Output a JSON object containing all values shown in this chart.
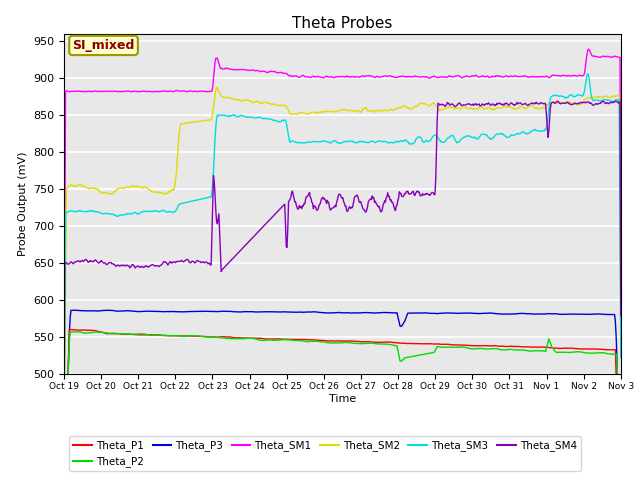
{
  "title": "Theta Probes",
  "xlabel": "Time",
  "ylabel": "Probe Output (mV)",
  "ylim": [
    500,
    960
  ],
  "yticks": [
    500,
    550,
    600,
    650,
    700,
    750,
    800,
    850,
    900,
    950
  ],
  "annotation_text": "SI_mixed",
  "annotation_color": "#8B0000",
  "annotation_bg": "#FFFFCC",
  "annotation_border": "#999900",
  "plot_bg": "#E8E8E8",
  "fig_bg": "#FFFFFF",
  "grid_color": "#FFFFFF",
  "colors": {
    "Theta_P1": "#FF0000",
    "Theta_P2": "#00DD00",
    "Theta_P3": "#0000DD",
    "Theta_SM1": "#FF00FF",
    "Theta_SM2": "#DDDD00",
    "Theta_SM3": "#00DDDD",
    "Theta_SM4": "#8800BB"
  },
  "x_labels": [
    "Oct 19",
    "Oct 20",
    "Oct 21",
    "Oct 22",
    "Oct 23",
    "Oct 24",
    "Oct 25",
    "Oct 26",
    "Oct 27",
    "Oct 28",
    "Oct 29",
    "Oct 30",
    "Oct 31",
    "Nov 1",
    "Nov 2",
    "Nov 3"
  ],
  "n_days": 15,
  "seed": 42
}
